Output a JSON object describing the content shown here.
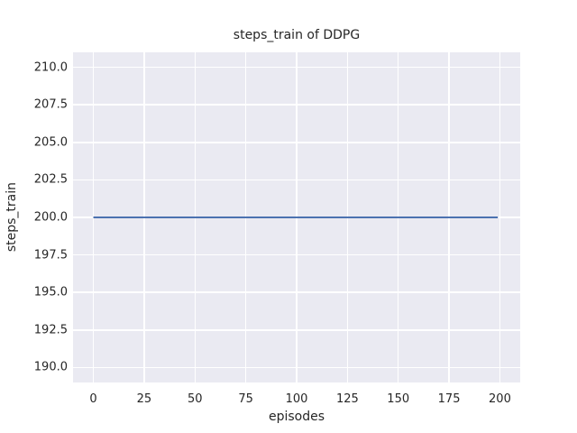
{
  "chart_data": {
    "type": "line",
    "title": "steps_train of DDPG",
    "xlabel": "episodes",
    "ylabel": "steps_train",
    "xlim": [
      -10,
      210
    ],
    "ylim": [
      189,
      211
    ],
    "xticks": [
      0,
      25,
      50,
      75,
      100,
      125,
      150,
      175,
      200
    ],
    "xtick_labels": [
      "0",
      "25",
      "50",
      "75",
      "100",
      "125",
      "150",
      "175",
      "200"
    ],
    "yticks": [
      190.0,
      192.5,
      195.0,
      197.5,
      200.0,
      202.5,
      205.0,
      207.5,
      210.0
    ],
    "ytick_labels": [
      "190.0",
      "192.5",
      "195.0",
      "197.5",
      "200.0",
      "202.5",
      "205.0",
      "207.5",
      "210.0"
    ],
    "grid": true,
    "legend": "none",
    "series": [
      {
        "name": "steps_train",
        "x": [
          0,
          199
        ],
        "y": [
          200,
          200
        ]
      }
    ],
    "styles": {
      "axes_background": "#eaeaf2",
      "grid_color": "#ffffff",
      "text_color": "#262626",
      "line_color": "#4c72b0",
      "line_width": 2
    }
  }
}
